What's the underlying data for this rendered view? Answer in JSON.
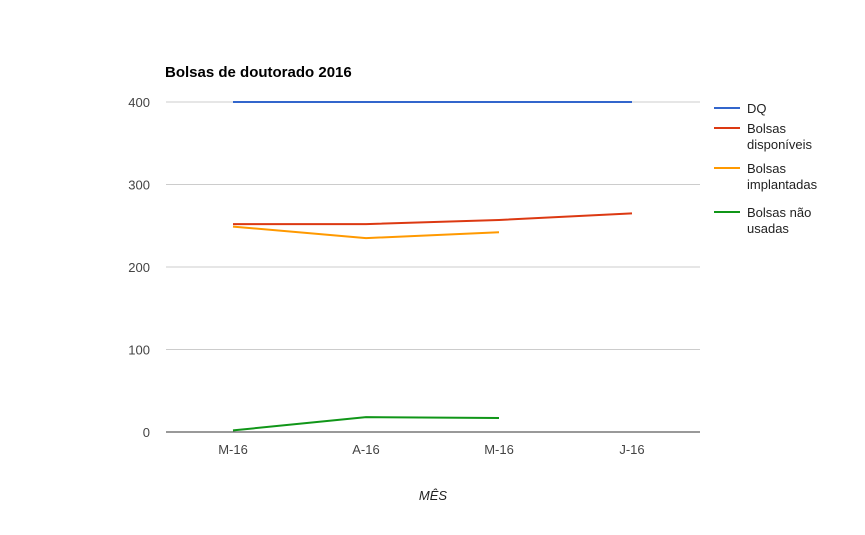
{
  "chart_data": {
    "type": "line",
    "title": "Bolsas de doutorado 2016",
    "xlabel": "MÊS",
    "ylabel": "",
    "categories": [
      "M-16",
      "A-16",
      "M-16",
      "J-16"
    ],
    "ylim": [
      0,
      400
    ],
    "yticks": [
      "0",
      "100",
      "200",
      "300",
      "400"
    ],
    "grid": true,
    "legend_position": "right",
    "series": [
      {
        "name": "DQ",
        "color": "#3366cc",
        "values": [
          400,
          400,
          400,
          400
        ]
      },
      {
        "name": "Bolsas disponíveis",
        "legend_lines": [
          "Bolsas",
          "disponíveis"
        ],
        "color": "#dc3912",
        "values": [
          252,
          252,
          257,
          265
        ]
      },
      {
        "name": "Bolsas implantadas",
        "legend_lines": [
          "Bolsas",
          "implantadas"
        ],
        "color": "#ff9900",
        "values": [
          249,
          235,
          242,
          null
        ]
      },
      {
        "name": "Bolsas não usadas",
        "legend_lines": [
          "Bolsas não",
          "usadas"
        ],
        "color": "#109618",
        "values": [
          2,
          18,
          17,
          null
        ]
      }
    ]
  }
}
